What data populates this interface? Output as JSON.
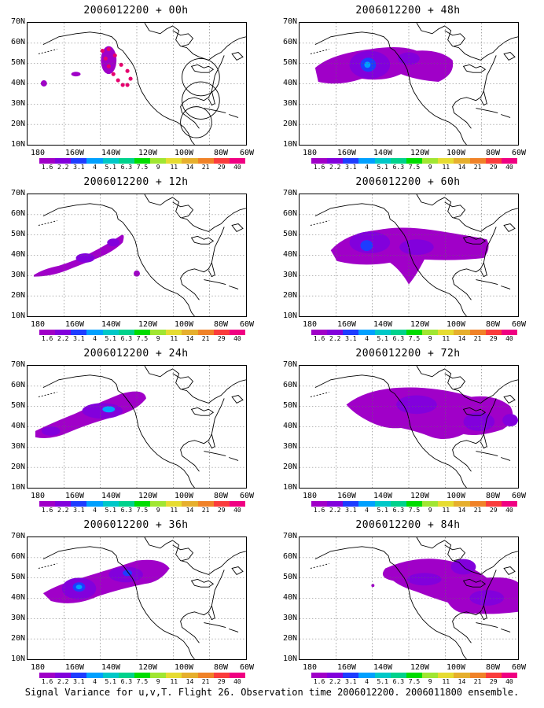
{
  "lat_labels": [
    "70N",
    "60N",
    "50N",
    "40N",
    "30N",
    "20N",
    "10N"
  ],
  "lon_labels": [
    "180",
    "160W",
    "140W",
    "120W",
    "100W",
    "80W",
    "60W"
  ],
  "colorbar": {
    "labels": [
      "1.6",
      "2.2",
      "3.1",
      "4",
      "5.1",
      "6.3",
      "7.5",
      "9",
      "11",
      "14",
      "21",
      "29",
      "40"
    ],
    "colors": [
      "#a000c8",
      "#8200dc",
      "#1e3cff",
      "#00a0ff",
      "#00c8c8",
      "#00d28c",
      "#00dc00",
      "#a0e632",
      "#e6dc32",
      "#e6af2d",
      "#f08228",
      "#fa3c3c",
      "#f00082"
    ]
  },
  "panels": [
    {
      "title": "2006012200 + 00h"
    },
    {
      "title": "2006012200 + 48h"
    },
    {
      "title": "2006012200 + 12h"
    },
    {
      "title": "2006012200 + 60h"
    },
    {
      "title": "2006012200 + 24h"
    },
    {
      "title": "2006012200 + 72h"
    },
    {
      "title": "2006012200 + 36h"
    },
    {
      "title": "2006012200 + 84h"
    }
  ],
  "caption": "Signal Variance for u,v,T. Flight 26. Observation time 2006012200. 2006011800 ensemble.",
  "colors": {
    "variance_low": "#a000c8",
    "variance_mid": "#8200dc",
    "variance_high": "#1e3cff",
    "variance_peak": "#00a0ff",
    "flight_track": "#e6006e"
  }
}
